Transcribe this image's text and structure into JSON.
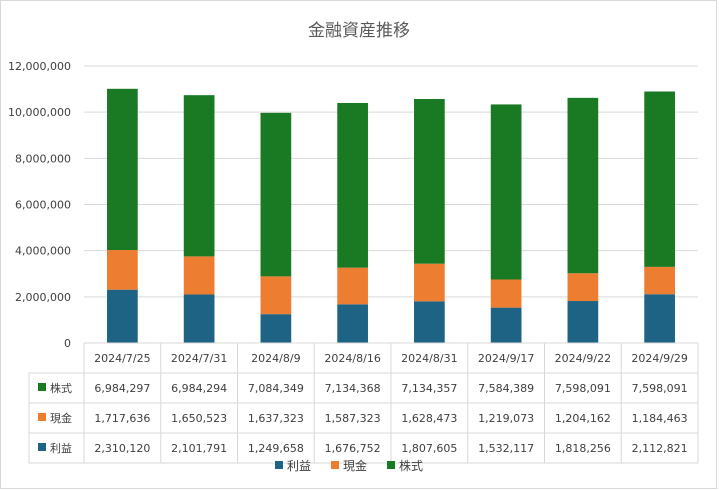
{
  "chart_data": {
    "type": "bar",
    "stacked": true,
    "title": "金融資産推移",
    "categories": [
      "2024/7/25",
      "2024/7/31",
      "2024/8/9",
      "2024/8/16",
      "2024/8/31",
      "2024/9/17",
      "2024/9/22",
      "2024/9/29"
    ],
    "series": [
      {
        "name": "利益",
        "color": "#1f6384",
        "values": [
          2310120,
          2101791,
          1249658,
          1676752,
          1807605,
          1532117,
          1818256,
          2112821
        ],
        "labels": [
          "2,310,120",
          "2,101,791",
          "1,249,658",
          "1,676,752",
          "1,807,605",
          "1,532,117",
          "1,818,256",
          "2,112,821"
        ]
      },
      {
        "name": "現金",
        "color": "#ed7d31",
        "values": [
          1717636,
          1650523,
          1637323,
          1587323,
          1628473,
          1219073,
          1204162,
          1184463
        ],
        "labels": [
          "1,717,636",
          "1,650,523",
          "1,637,323",
          "1,587,323",
          "1,628,473",
          "1,219,073",
          "1,204,162",
          "1,184,463"
        ]
      },
      {
        "name": "株式",
        "color": "#1a7a24",
        "values": [
          6984297,
          6984294,
          7084349,
          7134368,
          7134357,
          7584389,
          7598091,
          7598091
        ],
        "labels": [
          "6,984,297",
          "6,984,294",
          "7,084,349",
          "7,134,368",
          "7,134,357",
          "7,584,389",
          "7,598,091",
          "7,598,091"
        ]
      }
    ],
    "table_order": [
      2,
      1,
      0
    ],
    "ylim": [
      0,
      12000000
    ],
    "yticks": [
      0,
      2000000,
      4000000,
      6000000,
      8000000,
      10000000,
      12000000
    ],
    "ytick_labels": [
      "0",
      "2,000,000",
      "4,000,000",
      "6,000,000",
      "8,000,000",
      "10,000,000",
      "12,000,000"
    ],
    "grid": true,
    "legend": "bottom"
  }
}
